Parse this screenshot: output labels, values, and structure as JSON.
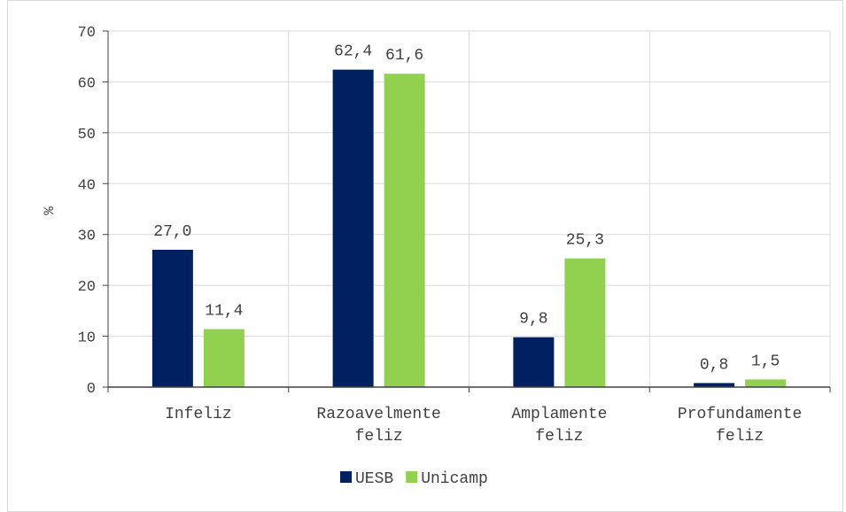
{
  "chart_data": {
    "type": "bar",
    "ylabel": "%",
    "ylim": [
      0,
      70
    ],
    "yticks": [
      0,
      10,
      20,
      30,
      40,
      50,
      60,
      70
    ],
    "grid": true,
    "legend_position": "bottom",
    "categories": [
      [
        "Infeliz"
      ],
      [
        "Razoavelmente",
        "feliz"
      ],
      [
        "Amplamente",
        "feliz"
      ],
      [
        "Profundamente",
        "feliz"
      ]
    ],
    "series": [
      {
        "name": "UESB",
        "color": "#002060",
        "values": [
          27.0,
          62.4,
          9.8,
          0.8
        ],
        "labels": [
          "27,0",
          "62,4",
          "9,8",
          "0,8"
        ]
      },
      {
        "name": "Unicamp",
        "color": "#92D050",
        "values": [
          11.4,
          61.6,
          25.3,
          1.5
        ],
        "labels": [
          "11,4",
          "61,6",
          "25,3",
          "1,5"
        ]
      }
    ]
  }
}
